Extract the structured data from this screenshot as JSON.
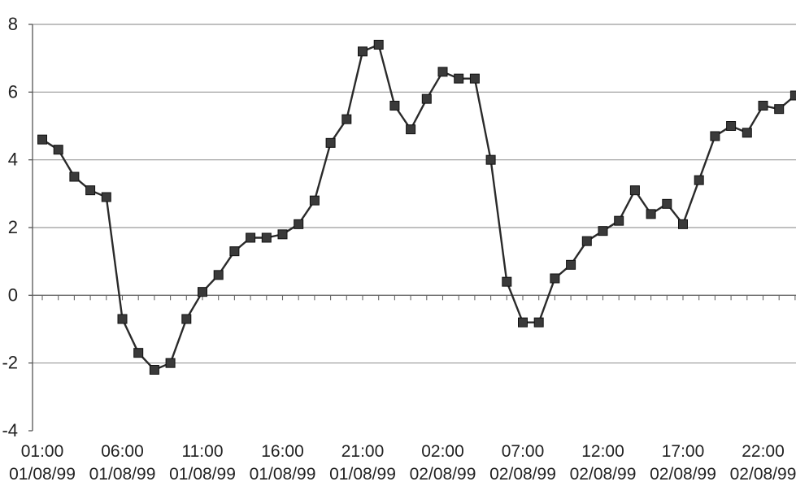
{
  "chart_data": {
    "type": "line",
    "title": "",
    "xlabel": "",
    "ylabel": "",
    "ylim": [
      -4,
      8
    ],
    "yticks": [
      8,
      6,
      4,
      2,
      0,
      -2,
      -4
    ],
    "ytick_labels": [
      "8",
      "6",
      "4",
      "2",
      "0",
      "-2",
      "-4"
    ],
    "grid": true,
    "legend": "none",
    "x_tick_labels": [
      {
        "time": "01:00",
        "date": "01/08/99"
      },
      {
        "time": "06:00",
        "date": "01/08/99"
      },
      {
        "time": "11:00",
        "date": "01/08/99"
      },
      {
        "time": "16:00",
        "date": "01/08/99"
      },
      {
        "time": "21:00",
        "date": "01/08/99"
      },
      {
        "time": "02:00",
        "date": "02/08/99"
      },
      {
        "time": "07:00",
        "date": "02/08/99"
      },
      {
        "time": "12:00",
        "date": "02/08/99"
      },
      {
        "time": "17:00",
        "date": "02/08/99"
      },
      {
        "time": "22:00",
        "date": "02/08/99"
      }
    ],
    "series": [
      {
        "x": [
          "01/08/99 01:00",
          "01/08/99 02:00",
          "01/08/99 03:00",
          "01/08/99 04:00",
          "01/08/99 05:00",
          "01/08/99 06:00",
          "01/08/99 07:00",
          "01/08/99 08:00",
          "01/08/99 09:00",
          "01/08/99 10:00",
          "01/08/99 11:00",
          "01/08/99 12:00",
          "01/08/99 13:00",
          "01/08/99 14:00",
          "01/08/99 15:00",
          "01/08/99 16:00",
          "01/08/99 17:00",
          "01/08/99 18:00",
          "01/08/99 19:00",
          "01/08/99 20:00",
          "01/08/99 21:00",
          "01/08/99 22:00",
          "01/08/99 23:00",
          "02/08/99 00:00",
          "02/08/99 01:00",
          "02/08/99 02:00",
          "02/08/99 03:00",
          "02/08/99 04:00",
          "02/08/99 05:00",
          "02/08/99 06:00",
          "02/08/99 07:00",
          "02/08/99 08:00",
          "02/08/99 09:00",
          "02/08/99 10:00",
          "02/08/99 11:00",
          "02/08/99 12:00",
          "02/08/99 13:00",
          "02/08/99 14:00",
          "02/08/99 15:00",
          "02/08/99 16:00",
          "02/08/99 17:00",
          "02/08/99 18:00",
          "02/08/99 19:00",
          "02/08/99 20:00",
          "02/08/99 21:00",
          "02/08/99 22:00",
          "02/08/99 23:00",
          "02/08/99 24:00"
        ],
        "values": [
          4.6,
          4.3,
          3.5,
          3.1,
          2.9,
          -0.7,
          -1.7,
          -2.2,
          -2.0,
          -0.7,
          0.1,
          0.6,
          1.3,
          1.7,
          1.7,
          1.8,
          2.1,
          2.8,
          4.5,
          5.2,
          7.2,
          7.4,
          5.6,
          4.9,
          5.8,
          6.6,
          6.4,
          6.4,
          4.0,
          0.4,
          -0.8,
          -0.8,
          0.5,
          0.9,
          1.6,
          1.9,
          2.2,
          3.1,
          2.4,
          2.7,
          2.1,
          3.4,
          4.7,
          5.0,
          4.8,
          5.6,
          5.5,
          5.9
        ],
        "color": "#2a2a2a",
        "marker": "square"
      }
    ]
  }
}
